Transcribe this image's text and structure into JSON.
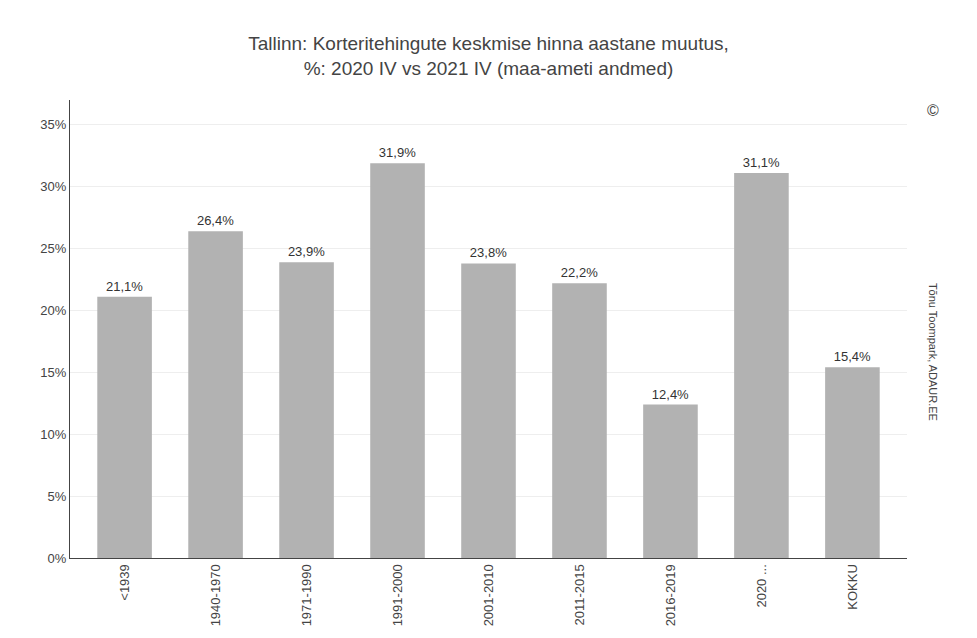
{
  "chart_data": {
    "type": "bar",
    "title": "Tallinn: Korteritehingute keskmise hinna aastane muutus,\n%: 2020 IV vs 2021 IV (maa-ameti andmed)",
    "categories": [
      "<1939",
      "1940-1970",
      "1971-1990",
      "1991-2000",
      "2001-2010",
      "2011-2015",
      "2016-2019",
      "2020 ...",
      "KOKKU"
    ],
    "values": [
      21.1,
      26.4,
      23.9,
      31.9,
      23.8,
      22.2,
      12.4,
      31.1,
      15.4
    ],
    "value_labels": [
      "21,1%",
      "26,4%",
      "23,9%",
      "31,9%",
      "23,8%",
      "22,2%",
      "12,4%",
      "31,1%",
      "15,4%"
    ],
    "data_labels": true,
    "color": "#b2b2b2",
    "ylim": [
      0,
      37
    ],
    "yticks": [
      {
        "value": 0,
        "label": "0%"
      },
      {
        "value": 5,
        "label": "5%"
      },
      {
        "value": 10,
        "label": "10%"
      },
      {
        "value": 15,
        "label": "15%"
      },
      {
        "value": 20,
        "label": "20%"
      },
      {
        "value": 25,
        "label": "25%"
      },
      {
        "value": 30,
        "label": "30%"
      },
      {
        "value": 35,
        "label": "35%"
      }
    ],
    "grid": true,
    "annotations": [
      "©",
      "Tõnu Toompark, ADAUR.EE"
    ]
  }
}
